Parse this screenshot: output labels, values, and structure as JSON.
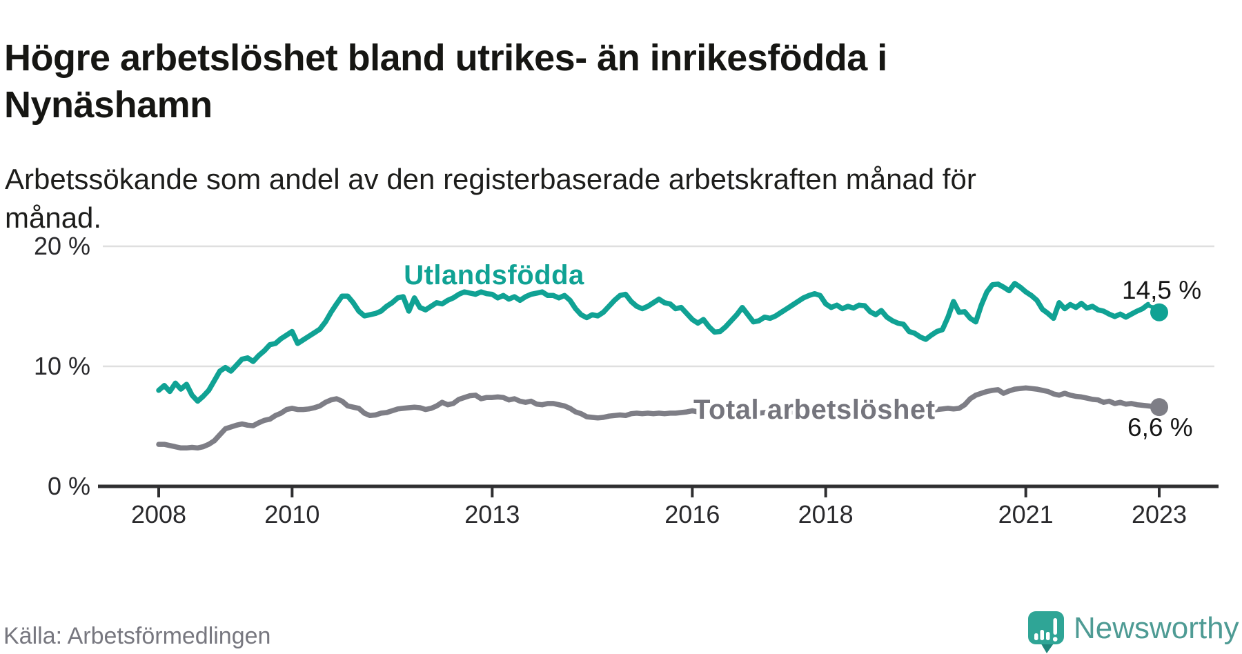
{
  "title_lines": [
    "Högre arbetslöshet bland utrikes- än inrikesfödda i",
    "Nynäshamn"
  ],
  "subtitle_lines": [
    "Arbetssökande som andel av den registerbaserade arbetskraften månad för",
    "månad."
  ],
  "source": "Källa: Arbetsförmedlingen",
  "logo": {
    "brand": "Newsworthy",
    "icon": "bar-chart-speech-bubble-icon",
    "icon_color": "#2fa596",
    "icon_tail_color": "#1f857a",
    "text_color": "#4e9b94"
  },
  "colors": {
    "background": "#ffffff",
    "grid": "#dfdfdf",
    "axis": "#2f2f31",
    "tick_text": "#29292c",
    "annotation_text": "#161616"
  },
  "chart_data": {
    "type": "line",
    "title": "Högre arbetslöshet bland utrikes- än inrikesfödda i Nynäshamn",
    "subtitle": "Arbetssökande som andel av den registerbaserade arbetskraften månad för månad.",
    "xlabel": "",
    "ylabel": "",
    "grid": "horizontal-only",
    "legend_position": "inline-labels",
    "x_start_year": 2008.0,
    "x_step_years": 0.0833333,
    "xlim": [
      2007.1,
      2023.85
    ],
    "ylim": [
      0,
      21.3
    ],
    "y_ticks": [
      {
        "value": 0,
        "label": "0 %"
      },
      {
        "value": 10,
        "label": "10 %"
      },
      {
        "value": 20,
        "label": "20 %"
      }
    ],
    "x_ticks": [
      {
        "year": 2008,
        "label": "2008"
      },
      {
        "year": 2010,
        "label": "2010"
      },
      {
        "year": 2013,
        "label": "2013"
      },
      {
        "year": 2016,
        "label": "2016"
      },
      {
        "year": 2018,
        "label": "2018"
      },
      {
        "year": 2021,
        "label": "2021"
      },
      {
        "year": 2023,
        "label": "2023"
      }
    ],
    "series": [
      {
        "name": "Utlandsfödda",
        "color": "#10a294",
        "end_label": "14,5 %",
        "end_value": 14.5,
        "values": [
          8.0,
          8.4,
          7.9,
          8.6,
          8.1,
          8.5,
          7.6,
          7.1,
          7.5,
          8.0,
          8.8,
          9.6,
          9.9,
          9.6,
          10.1,
          10.6,
          10.7,
          10.4,
          10.9,
          11.3,
          11.8,
          11.9,
          12.3,
          12.6,
          12.9,
          11.9,
          12.2,
          12.5,
          12.8,
          13.1,
          13.7,
          14.5,
          15.2,
          15.85,
          15.85,
          15.3,
          14.6,
          14.2,
          14.3,
          14.4,
          14.6,
          15.0,
          15.3,
          15.7,
          15.8,
          14.6,
          15.7,
          14.9,
          14.7,
          15.0,
          15.3,
          15.2,
          15.5,
          15.7,
          16.0,
          16.2,
          16.1,
          16.0,
          16.2,
          16.05,
          16.0,
          15.7,
          15.9,
          15.6,
          15.8,
          15.5,
          15.8,
          16.0,
          16.1,
          16.2,
          15.9,
          15.9,
          15.7,
          15.9,
          15.5,
          14.8,
          14.3,
          14.05,
          14.3,
          14.2,
          14.5,
          15.0,
          15.5,
          15.9,
          16.0,
          15.4,
          15.0,
          14.8,
          15.0,
          15.3,
          15.6,
          15.3,
          15.2,
          14.8,
          14.9,
          14.4,
          13.9,
          13.6,
          13.9,
          13.3,
          12.85,
          12.9,
          13.3,
          13.8,
          14.3,
          14.9,
          14.3,
          13.7,
          13.8,
          14.1,
          14.0,
          14.2,
          14.5,
          14.8,
          15.1,
          15.4,
          15.7,
          15.9,
          16.05,
          15.9,
          15.2,
          14.9,
          15.1,
          14.8,
          15.0,
          14.85,
          15.1,
          15.05,
          14.55,
          14.3,
          14.65,
          14.1,
          13.8,
          13.6,
          13.5,
          12.9,
          12.75,
          12.45,
          12.25,
          12.6,
          12.9,
          13.05,
          14.1,
          15.4,
          14.5,
          14.55,
          14.0,
          13.7,
          15.1,
          16.2,
          16.8,
          16.85,
          16.6,
          16.3,
          16.9,
          16.6,
          16.2,
          15.9,
          15.5,
          14.75,
          14.4,
          14.0,
          15.3,
          14.8,
          15.15,
          14.9,
          15.25,
          14.85,
          15.0,
          14.7,
          14.6,
          14.35,
          14.15,
          14.35,
          14.1,
          14.35,
          14.6,
          14.8,
          15.15,
          14.95,
          14.5
        ]
      },
      {
        "name": "Total arbetslöshet",
        "color": "#7e7e86",
        "label_color": "#75757d",
        "end_label": "6,6 %",
        "end_value": 6.6,
        "values": [
          3.5,
          3.5,
          3.4,
          3.3,
          3.2,
          3.2,
          3.25,
          3.2,
          3.3,
          3.5,
          3.8,
          4.3,
          4.8,
          4.95,
          5.1,
          5.2,
          5.1,
          5.05,
          5.3,
          5.5,
          5.6,
          5.9,
          6.1,
          6.4,
          6.5,
          6.4,
          6.4,
          6.45,
          6.55,
          6.7,
          7.0,
          7.2,
          7.3,
          7.1,
          6.7,
          6.6,
          6.5,
          6.1,
          5.9,
          5.95,
          6.1,
          6.15,
          6.3,
          6.45,
          6.5,
          6.55,
          6.6,
          6.55,
          6.4,
          6.5,
          6.7,
          7.0,
          6.8,
          6.9,
          7.25,
          7.4,
          7.55,
          7.6,
          7.3,
          7.4,
          7.4,
          7.45,
          7.4,
          7.2,
          7.3,
          7.1,
          7.0,
          7.1,
          6.85,
          6.8,
          6.9,
          6.9,
          6.8,
          6.7,
          6.5,
          6.2,
          6.05,
          5.8,
          5.75,
          5.7,
          5.75,
          5.85,
          5.9,
          5.95,
          5.9,
          6.05,
          6.1,
          6.05,
          6.1,
          6.05,
          6.1,
          6.05,
          6.1,
          6.1,
          6.15,
          6.2,
          6.3,
          6.2,
          6.25,
          6.15,
          6.2,
          6.1,
          6.15,
          6.1,
          6.2,
          6.15,
          6.1,
          6.15,
          6.1,
          6.15,
          6.1,
          6.15,
          6.2,
          6.25,
          6.2,
          6.25,
          6.3,
          6.25,
          6.3,
          6.25,
          6.2,
          6.15,
          6.2,
          6.15,
          6.1,
          6.2,
          6.15,
          6.2,
          6.25,
          6.3,
          6.25,
          6.3,
          6.25,
          6.3,
          6.3,
          6.25,
          6.3,
          6.35,
          6.4,
          6.35,
          6.4,
          6.45,
          6.5,
          6.45,
          6.5,
          6.8,
          7.3,
          7.6,
          7.75,
          7.9,
          8.0,
          8.05,
          7.75,
          7.95,
          8.1,
          8.15,
          8.2,
          8.15,
          8.1,
          8.0,
          7.9,
          7.7,
          7.6,
          7.75,
          7.6,
          7.5,
          7.45,
          7.35,
          7.25,
          7.2,
          7.0,
          7.1,
          6.9,
          7.0,
          6.85,
          6.9,
          6.8,
          6.75,
          6.7,
          6.65,
          6.6
        ]
      }
    ]
  }
}
